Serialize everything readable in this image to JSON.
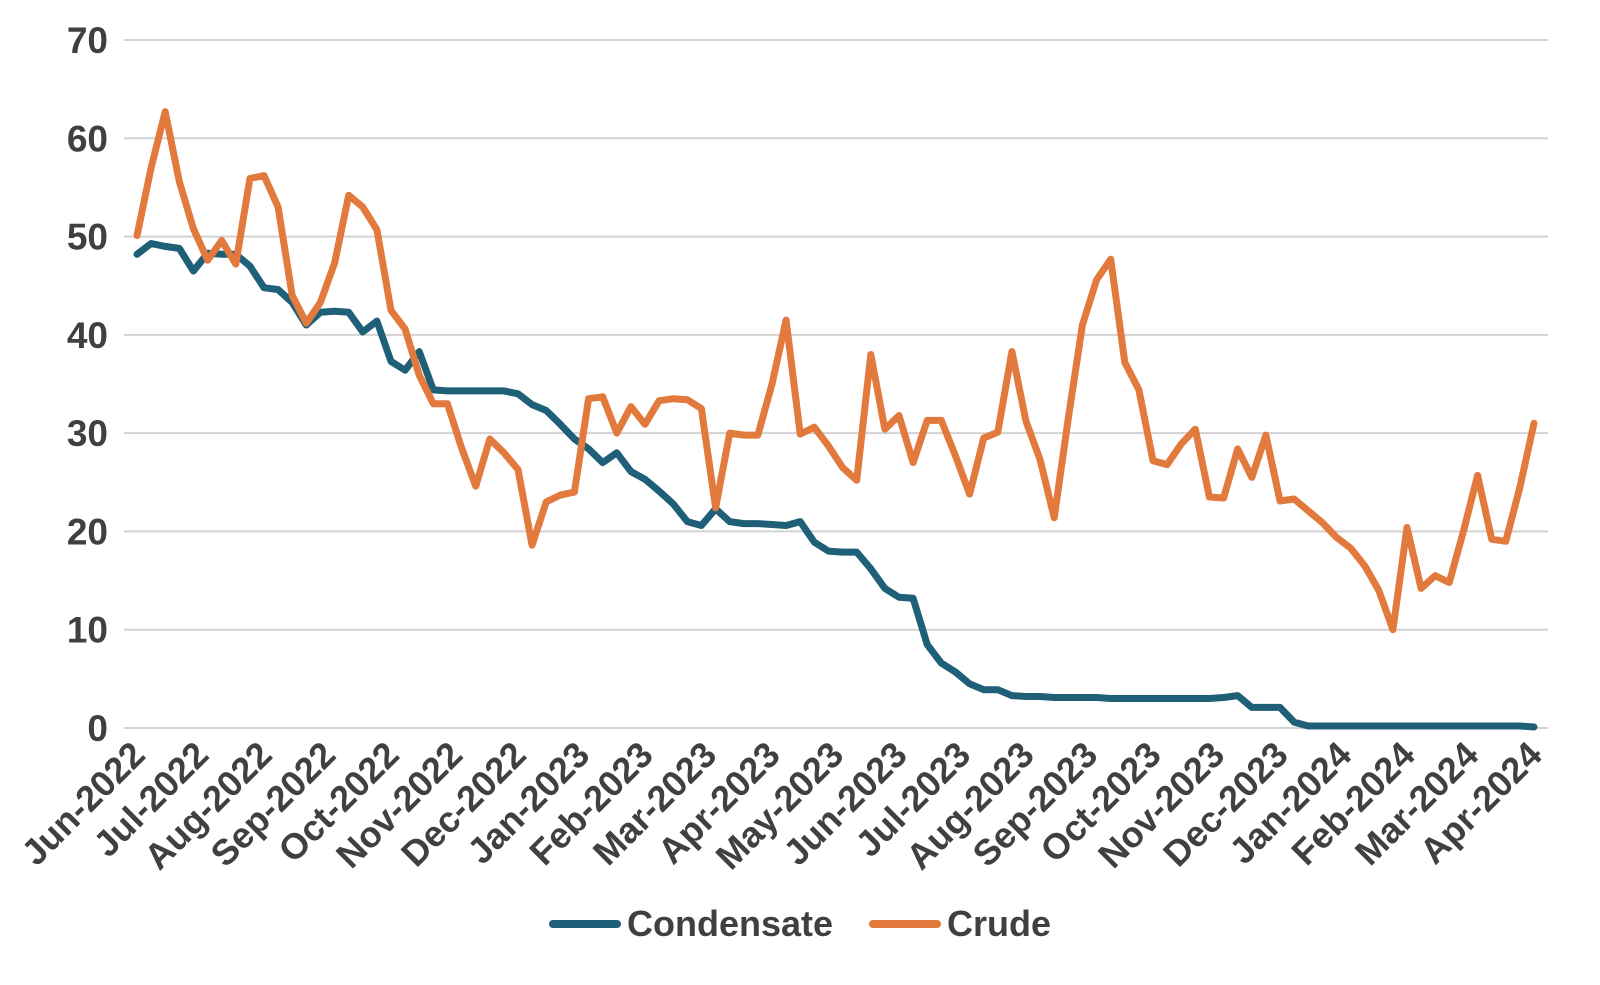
{
  "chart_data": {
    "type": "line",
    "title": "",
    "xlabel": "",
    "ylabel": "",
    "ylim": [
      0,
      70
    ],
    "y_ticks": [
      0,
      10,
      20,
      30,
      40,
      50,
      60,
      70
    ],
    "grid": "horizontal",
    "gridline_color": "#D2D2D2",
    "axis_text_color": "#404040",
    "legend_position": "bottom-center",
    "x_tick_labels": [
      "Jun-2022",
      "Jul-2022",
      "Aug-2022",
      "Sep-2022",
      "Oct-2022",
      "Nov-2022",
      "Dec-2022",
      "Jan-2023",
      "Feb-2023",
      "Mar-2023",
      "Apr-2023",
      "May-2023",
      "Jun-2023",
      "Jul-2023",
      "Aug-2023",
      "Sep-2023",
      "Oct-2023",
      "Nov-2023",
      "Dec-2023",
      "Jan-2024",
      "Feb-2024",
      "Mar-2024",
      "Apr-2024"
    ],
    "x_resolution": "weekly",
    "series": [
      {
        "name": "Condensate",
        "color": "#1F5F78",
        "values": [
          48.2,
          49.3,
          49.0,
          48.8,
          46.5,
          48.3,
          48.2,
          48.2,
          47.0,
          44.8,
          44.6,
          43.3,
          41.0,
          42.3,
          42.4,
          42.3,
          40.3,
          41.4,
          37.3,
          36.4,
          38.3,
          34.4,
          34.3,
          34.3,
          34.3,
          34.3,
          34.3,
          34.0,
          32.9,
          32.3,
          30.9,
          29.4,
          28.4,
          27.0,
          28.0,
          26.1,
          25.3,
          24.1,
          22.8,
          21.0,
          20.6,
          22.3,
          21.0,
          20.8,
          20.8,
          20.7,
          20.6,
          21.0,
          18.9,
          18.0,
          17.9,
          17.9,
          16.2,
          14.2,
          13.3,
          13.2,
          8.5,
          6.6,
          5.7,
          4.5,
          3.9,
          3.9,
          3.3,
          3.2,
          3.2,
          3.1,
          3.1,
          3.1,
          3.1,
          3.0,
          3.0,
          3.0,
          3.0,
          3.0,
          3.0,
          3.0,
          3.0,
          3.1,
          3.3,
          2.1,
          2.1,
          2.1,
          0.6,
          0.2,
          0.2,
          0.2,
          0.2,
          0.2,
          0.2,
          0.2,
          0.2,
          0.2,
          0.2,
          0.2,
          0.2,
          0.2,
          0.2,
          0.2,
          0.2,
          0.1
        ]
      },
      {
        "name": "Crude",
        "color": "#E27A3D",
        "values": [
          50.1,
          57.0,
          62.7,
          55.6,
          50.8,
          47.6,
          49.6,
          47.2,
          55.9,
          56.2,
          53.0,
          44.0,
          41.2,
          43.3,
          47.3,
          54.2,
          53.0,
          50.7,
          42.5,
          40.6,
          35.9,
          33.0,
          33.0,
          28.5,
          24.6,
          29.4,
          28.0,
          26.3,
          18.6,
          23.0,
          23.7,
          24.0,
          33.5,
          33.7,
          30.0,
          32.7,
          30.9,
          33.3,
          33.5,
          33.4,
          32.5,
          22.4,
          30.0,
          29.8,
          29.8,
          35.0,
          41.5,
          29.9,
          30.6,
          28.7,
          26.5,
          25.2,
          38.0,
          30.4,
          31.8,
          27.0,
          31.3,
          31.3,
          27.7,
          23.8,
          29.5,
          30.1,
          38.3,
          31.2,
          27.3,
          21.4,
          31.5,
          41.0,
          45.6,
          47.7,
          37.2,
          34.4,
          27.2,
          26.8,
          28.9,
          30.4,
          23.5,
          23.4,
          28.4,
          25.5,
          29.8,
          23.1,
          23.3,
          22.1,
          20.9,
          19.4,
          18.3,
          16.5,
          14.0,
          10.0,
          20.4,
          14.2,
          15.5,
          14.8,
          20.0,
          25.7,
          19.2,
          19.0,
          24.5,
          31.0
        ]
      }
    ]
  },
  "style": {
    "background": "#FFFFFF",
    "line_width": 7,
    "tick_font_size": 37,
    "legend_font_size": 36
  }
}
